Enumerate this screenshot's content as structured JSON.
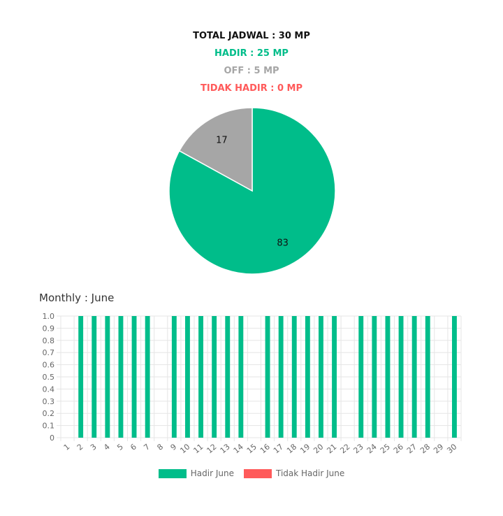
{
  "summary": {
    "total": "TOTAL JADWAL : 30 MP",
    "hadir": "HADIR : 25 MP",
    "off": "OFF : 5 MP",
    "tidak_hadir": "TIDAK HADIR : 0 MP"
  },
  "colors": {
    "hadir": "#00bd8a",
    "off": "#a6a6a6",
    "tidak_hadir": "#ff5a5a",
    "grid": "#e5e5e5",
    "axis_text": "#666666"
  },
  "chart_data": [
    {
      "type": "pie",
      "slices": [
        {
          "label": "83",
          "value": 83,
          "color": "#00bd8a"
        },
        {
          "label": "17",
          "value": 17,
          "color": "#a6a6a6"
        }
      ]
    },
    {
      "type": "bar",
      "title": "Monthly : June",
      "ylim": [
        0,
        1.0
      ],
      "yticks": [
        "0",
        "0.1",
        "0.2",
        "0.3",
        "0.4",
        "0.5",
        "0.6",
        "0.7",
        "0.8",
        "0.9",
        "1.0"
      ],
      "categories": [
        "1",
        "2",
        "3",
        "4",
        "5",
        "6",
        "7",
        "8",
        "9",
        "10",
        "11",
        "12",
        "13",
        "14",
        "15",
        "16",
        "17",
        "18",
        "19",
        "20",
        "21",
        "22",
        "23",
        "24",
        "25",
        "26",
        "27",
        "28",
        "29",
        "30"
      ],
      "series": [
        {
          "name": "Hadir June",
          "color": "#00bd8a",
          "values": [
            0,
            1,
            1,
            1,
            1,
            1,
            1,
            0,
            1,
            1,
            1,
            1,
            1,
            1,
            0,
            1,
            1,
            1,
            1,
            1,
            1,
            0,
            1,
            1,
            1,
            1,
            1,
            1,
            0,
            1
          ]
        },
        {
          "name": "Tidak Hadir June",
          "color": "#ff5a5a",
          "values": [
            0,
            0,
            0,
            0,
            0,
            0,
            0,
            0,
            0,
            0,
            0,
            0,
            0,
            0,
            0,
            0,
            0,
            0,
            0,
            0,
            0,
            0,
            0,
            0,
            0,
            0,
            0,
            0,
            0,
            0
          ]
        }
      ],
      "grid": true,
      "legend": "bottom"
    }
  ]
}
